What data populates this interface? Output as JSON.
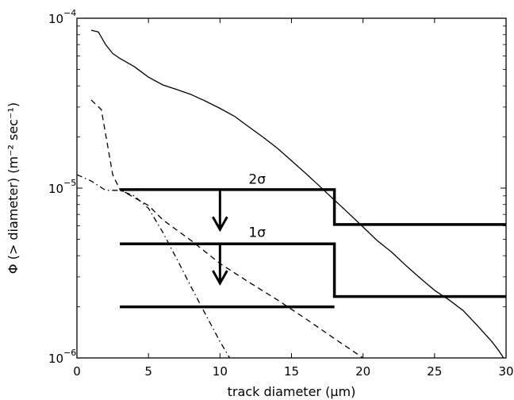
{
  "chart_data": {
    "type": "line",
    "xlabel": "track diameter (μm)",
    "ylabel": "Φ (> diameter) (m⁻² sec⁻¹)",
    "xlim": [
      0,
      30
    ],
    "ylim": [
      1e-06,
      0.0001
    ],
    "yscale": "log",
    "grid": false,
    "x_ticks": [
      0,
      5,
      10,
      15,
      20,
      25,
      30
    ],
    "x_tick_labels": [
      "0",
      "5",
      "10",
      "15",
      "20",
      "25",
      "30"
    ],
    "y_ticks": [
      1e-06,
      1e-05,
      0.0001
    ],
    "y_tick_labels": [
      {
        "base": "10",
        "exp": "−6"
      },
      {
        "base": "10",
        "exp": "−5"
      },
      {
        "base": "10",
        "exp": "−4"
      }
    ],
    "series": [
      {
        "style": "solid",
        "points": [
          [
            1.0,
            8.5e-05
          ],
          [
            1.5,
            8.3e-05
          ],
          [
            2.0,
            7e-05
          ],
          [
            2.5,
            6.2e-05
          ],
          [
            3.0,
            5.8e-05
          ],
          [
            4.0,
            5.2e-05
          ],
          [
            5.0,
            4.5e-05
          ],
          [
            6.0,
            4.05e-05
          ],
          [
            7.0,
            3.8e-05
          ],
          [
            8.0,
            3.55e-05
          ],
          [
            9.0,
            3.25e-05
          ],
          [
            10.0,
            2.95e-05
          ],
          [
            11.0,
            2.65e-05
          ],
          [
            12.0,
            2.3e-05
          ],
          [
            13.0,
            2e-05
          ],
          [
            14.0,
            1.72e-05
          ],
          [
            15.0,
            1.45e-05
          ],
          [
            16.0,
            1.22e-05
          ],
          [
            17.0,
            1.02e-05
          ],
          [
            18.0,
            8.5e-06
          ],
          [
            19.0,
            7.1e-06
          ],
          [
            20.0,
            5.9e-06
          ],
          [
            21.0,
            4.9e-06
          ],
          [
            22.0,
            4.2e-06
          ],
          [
            23.0,
            3.5e-06
          ],
          [
            24.0,
            2.95e-06
          ],
          [
            25.0,
            2.5e-06
          ],
          [
            26.0,
            2.2e-06
          ],
          [
            27.0,
            1.9e-06
          ],
          [
            28.0,
            1.55e-06
          ],
          [
            29.0,
            1.25e-06
          ],
          [
            29.5,
            1.1e-06
          ],
          [
            30.0,
            9.5e-07
          ]
        ]
      },
      {
        "style": "dashed",
        "points": [
          [
            1.0,
            3.3e-05
          ],
          [
            1.7,
            2.9e-05
          ],
          [
            2.5,
            1.2e-05
          ],
          [
            3.0,
            9.8e-06
          ],
          [
            4.0,
            8.8e-06
          ],
          [
            5.0,
            7.9e-06
          ],
          [
            6.0,
            6.5e-06
          ],
          [
            8.0,
            4.9e-06
          ],
          [
            10.0,
            3.6e-06
          ],
          [
            12.0,
            2.8e-06
          ],
          [
            14.0,
            2.2e-06
          ],
          [
            16.0,
            1.7e-06
          ],
          [
            18.0,
            1.3e-06
          ],
          [
            20.0,
            1e-06
          ]
        ]
      },
      {
        "style": "dashdot",
        "points": [
          [
            0.0,
            1.2e-05
          ],
          [
            1.0,
            1.1e-05
          ],
          [
            2.0,
            9.7e-06
          ],
          [
            3.0,
            9.7e-06
          ],
          [
            4.0,
            9e-06
          ],
          [
            5.0,
            7.6e-06
          ],
          [
            6.0,
            5.5e-06
          ],
          [
            7.0,
            3.8e-06
          ],
          [
            8.0,
            2.6e-06
          ],
          [
            9.0,
            1.8e-06
          ],
          [
            10.0,
            1.25e-06
          ],
          [
            11.0,
            9e-07
          ]
        ]
      }
    ],
    "limits": [
      {
        "label": "2σ",
        "points": [
          [
            3.0,
            9.8e-06
          ],
          [
            18.0,
            9.8e-06
          ],
          [
            18.0,
            6.1e-06
          ],
          [
            30.0,
            6.1e-06
          ]
        ],
        "arrow_x": 10.0,
        "arrow_y": [
          9.8e-06,
          5.7e-06
        ],
        "label_at": [
          12.6,
          1.06e-05
        ]
      },
      {
        "label": "1σ",
        "points": [
          [
            3.0,
            4.7e-06
          ],
          [
            18.0,
            4.7e-06
          ],
          [
            18.0,
            2.3e-06
          ],
          [
            30.0,
            2.3e-06
          ]
        ],
        "arrow_x": 10.0,
        "arrow_y": [
          4.7e-06,
          2.75e-06
        ],
        "label_at": [
          12.6,
          5.15e-06
        ]
      },
      {
        "label": "",
        "points": [
          [
            3.0,
            2e-06
          ],
          [
            18.0,
            2e-06
          ]
        ]
      }
    ]
  }
}
